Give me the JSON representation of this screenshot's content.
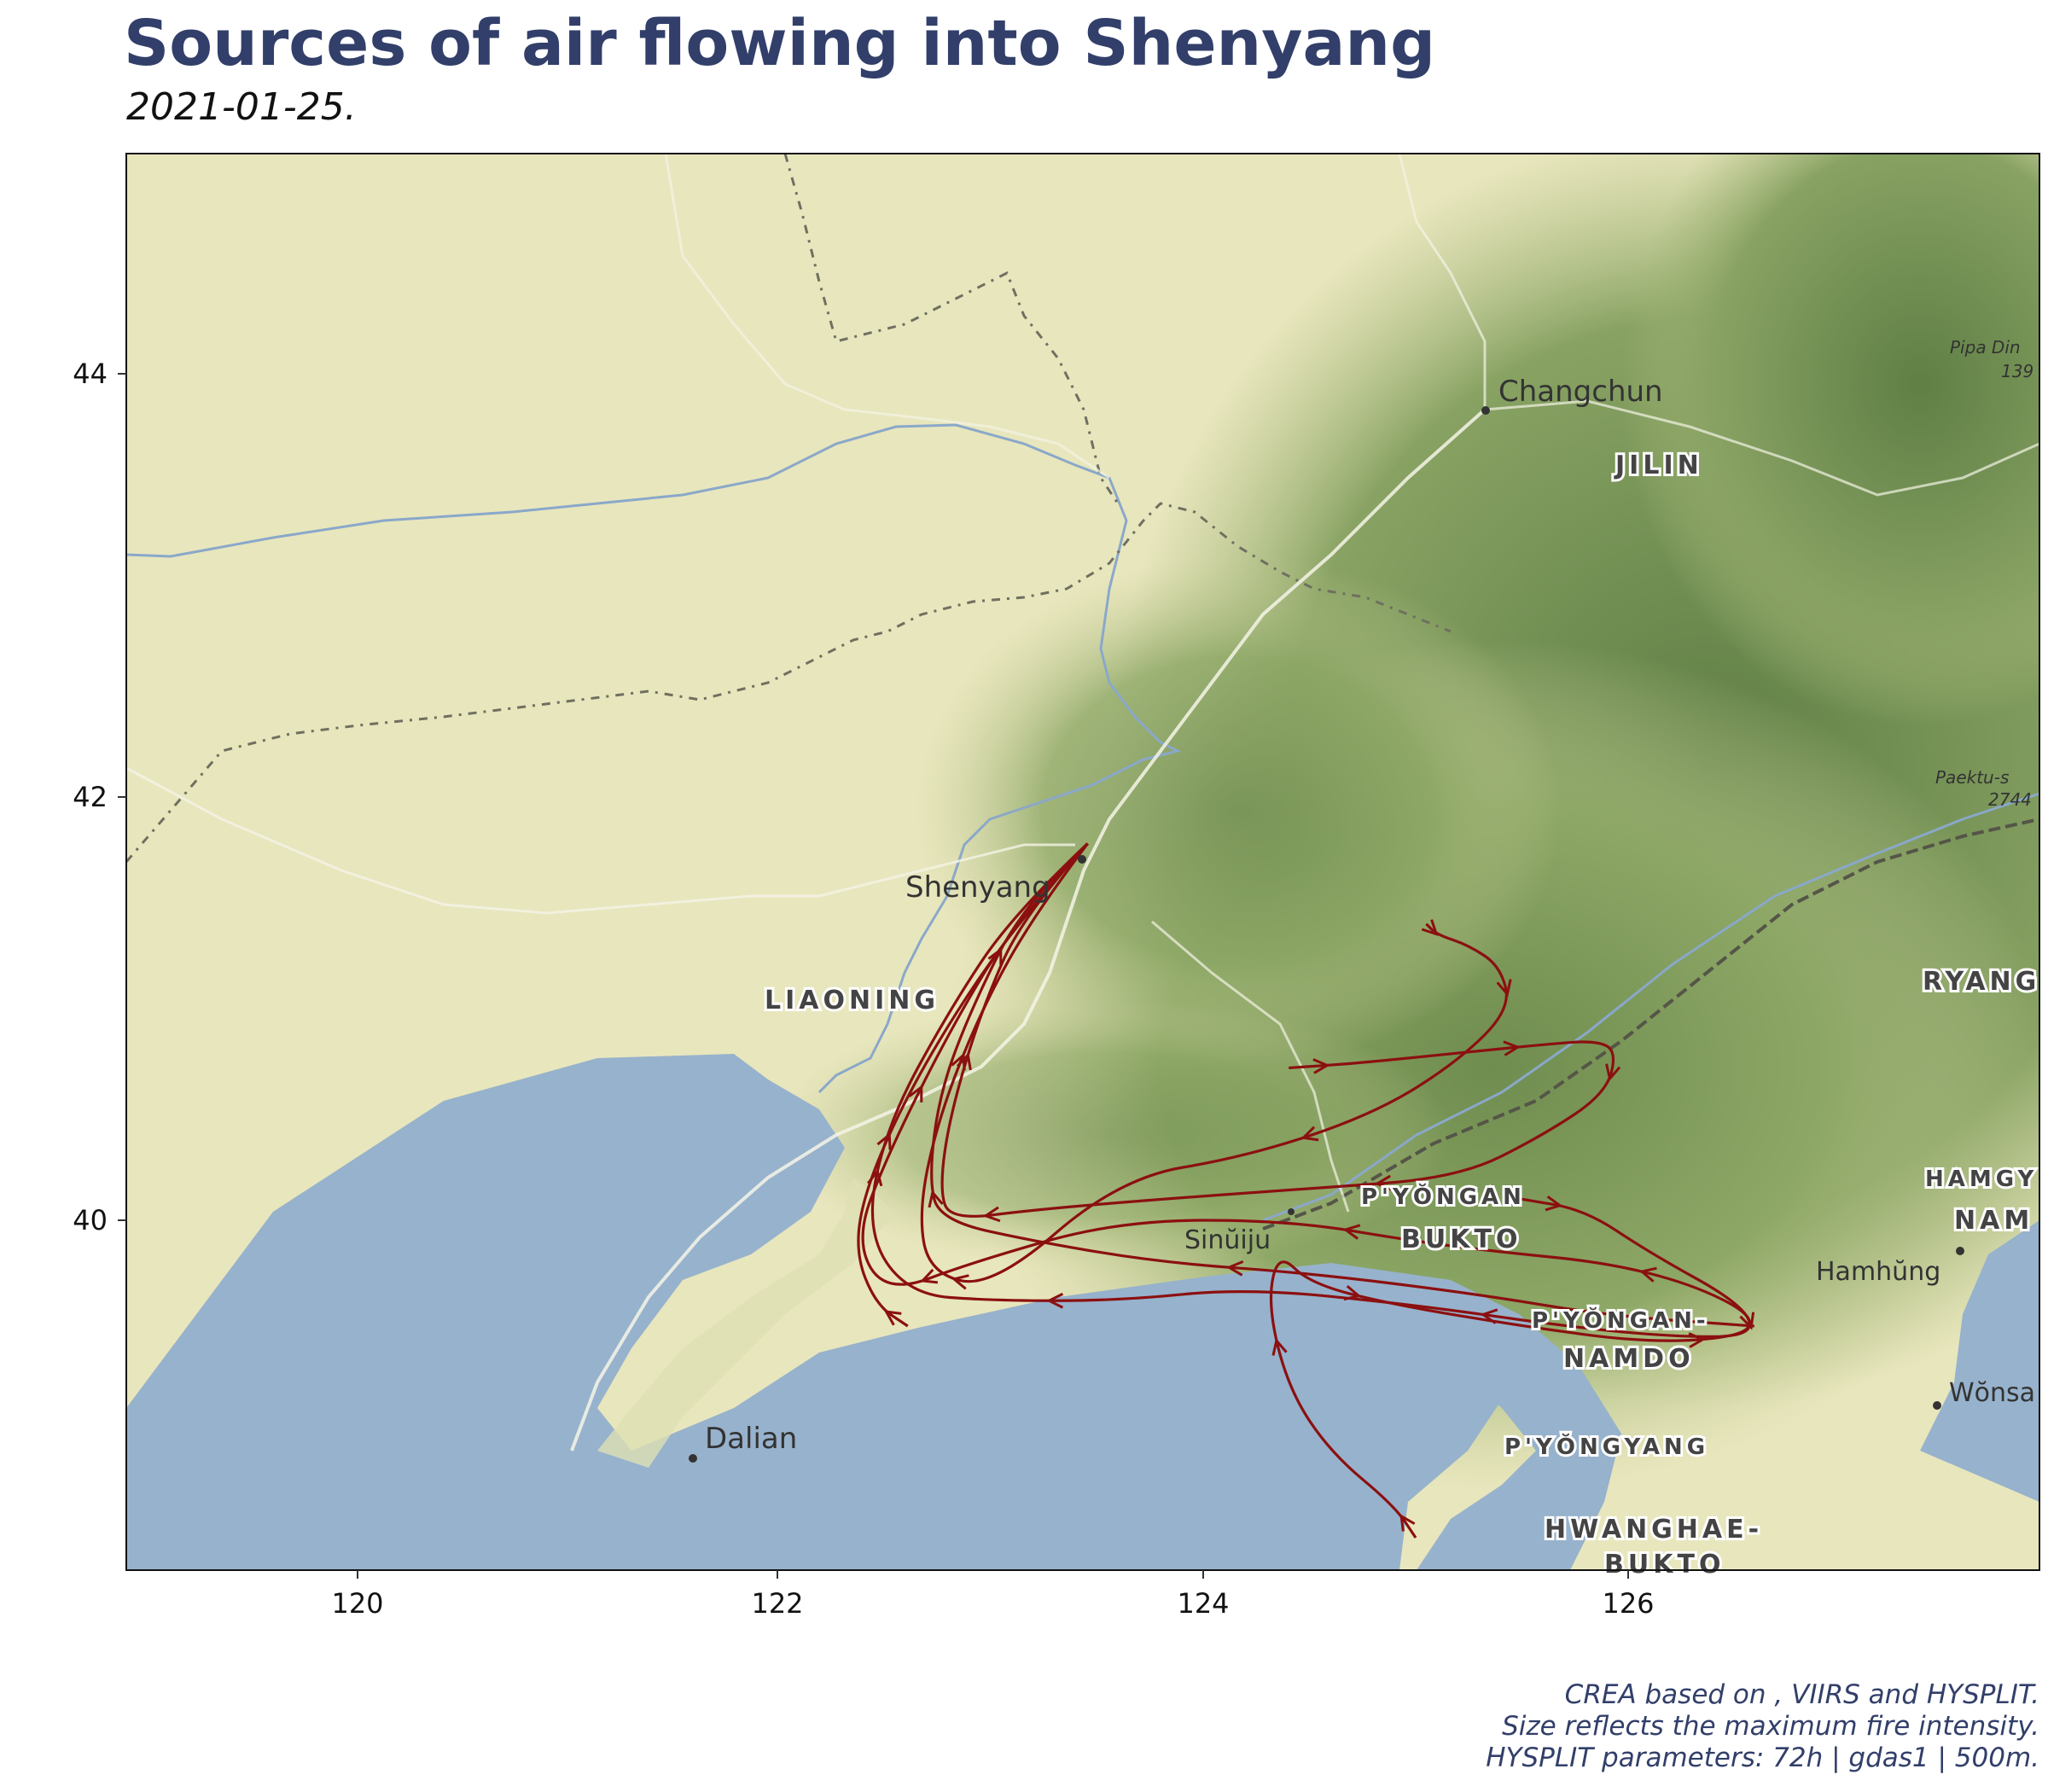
{
  "title": "Sources of air flowing into Shenyang",
  "subtitle": "2021-01-25.",
  "caption": {
    "line1": "CREA based on , VIIRS and HYSPLIT.",
    "line2": "Size reflects the maximum fire intensity.",
    "line3": "HYSPLIT parameters: 72h | gdas1 | 500m."
  },
  "colors": {
    "trajectory": "#8b1010",
    "sea": "#97b2cc",
    "land": "#e8e6bd",
    "forest": "#7e9a5c",
    "title": "#323f6a"
  },
  "axes": {
    "x_ticks": [
      "120",
      "122",
      "124",
      "126"
    ],
    "y_ticks": [
      "44",
      "42",
      "40"
    ]
  },
  "places": {
    "shenyang": "Shenyang",
    "changchun": "Changchun",
    "dalian": "Dalian",
    "sinuiju": "Sinŭiju",
    "hamhung": "Hamhŭng",
    "wonsan": "Wŏnsa"
  },
  "regions": {
    "jilin": "JILIN",
    "liaoning": "LIAONING",
    "pyongan_bukto_1": "P'YŎNGAN",
    "pyongan_bukto_2": "BUKTO",
    "pyongan_namdo_1": "P'YŎNGAN-",
    "pyongan_namdo_2": "NAMDO",
    "pyongyang": "P'YŎNGYANG",
    "hwanghae_1": "HWANGHAE-",
    "hwanghae_2": "BUKTO",
    "ryang": "RYANG",
    "hamgy_1": "HAMGY",
    "hamgy_2": "NAM"
  },
  "peaks": {
    "pipa_1": "Pipa Din",
    "pipa_2": "139",
    "paektu_1": "Paektu-s",
    "paektu_2": "2744"
  },
  "trajectories": [
    {
      "lon": [
        123.45,
        123.2,
        122.9,
        122.6,
        122.4,
        122.35,
        122.45,
        122.6
      ],
      "lat": [
        41.78,
        41.5,
        41.1,
        40.6,
        40.15,
        39.85,
        39.6,
        39.5
      ]
    },
    {
      "lon": [
        123.45,
        123.15,
        122.9,
        122.75,
        122.7,
        122.75,
        123.2,
        123.8,
        124.5,
        125.3,
        125.9,
        126.6
      ],
      "lat": [
        41.78,
        41.5,
        41.0,
        40.6,
        40.2,
        40.0,
        39.9,
        39.8,
        39.75,
        39.65,
        39.55,
        39.5
      ]
    },
    {
      "lon": [
        123.45,
        123.1,
        122.8,
        122.5,
        122.4,
        122.6,
        123.0,
        123.6,
        124.2,
        125.0,
        125.7,
        126.2,
        126.6,
        126.55,
        126.1,
        125.8,
        125.5
      ],
      "lat": [
        41.78,
        41.45,
        41.0,
        40.45,
        39.95,
        39.65,
        39.62,
        39.62,
        39.68,
        39.6,
        39.5,
        39.45,
        39.45,
        39.6,
        39.85,
        40.05,
        40.1
      ]
    },
    {
      "lon": [
        123.45,
        123.1,
        122.8,
        122.5,
        122.35,
        122.5,
        122.9,
        123.6,
        124.4,
        125.0,
        125.4,
        125.9,
        126.3,
        126.6,
        126.55,
        126.1,
        125.5,
        124.9,
        124.5,
        124.35,
        124.3,
        124.4,
        124.6,
        124.9,
        125.0
      ],
      "lat": [
        41.78,
        41.4,
        40.9,
        40.3,
        39.9,
        39.65,
        39.8,
        40.0,
        40.0,
        39.9,
        39.85,
        39.8,
        39.7,
        39.55,
        39.45,
        39.42,
        39.5,
        39.6,
        39.7,
        39.85,
        39.6,
        39.2,
        38.9,
        38.65,
        38.5
      ]
    },
    {
      "lon": [
        123.45,
        123.2,
        122.95,
        122.75,
        122.65,
        122.7,
        123.0,
        123.6,
        124.2,
        124.8,
        125.2,
        125.45,
        125.4,
        125.25,
        125.1,
        125.05
      ],
      "lat": [
        41.78,
        41.45,
        41.0,
        40.5,
        40.05,
        39.75,
        39.68,
        40.2,
        40.3,
        40.5,
        40.75,
        41.0,
        41.2,
        41.3,
        41.35,
        41.4
      ]
    },
    {
      "lon": [
        123.45,
        123.15,
        122.95,
        122.8,
        122.75,
        122.8,
        123.2,
        123.8,
        124.5,
        125.2,
        125.6,
        125.9,
        125.95,
        125.85,
        125.6,
        125.3,
        125.0,
        124.7,
        124.4
      ],
      "lat": [
        41.78,
        41.45,
        41.0,
        40.5,
        40.15,
        40.0,
        40.05,
        40.1,
        40.15,
        40.2,
        40.4,
        40.6,
        40.8,
        40.85,
        40.83,
        40.8,
        40.77,
        40.74,
        40.72
      ]
    }
  ]
}
